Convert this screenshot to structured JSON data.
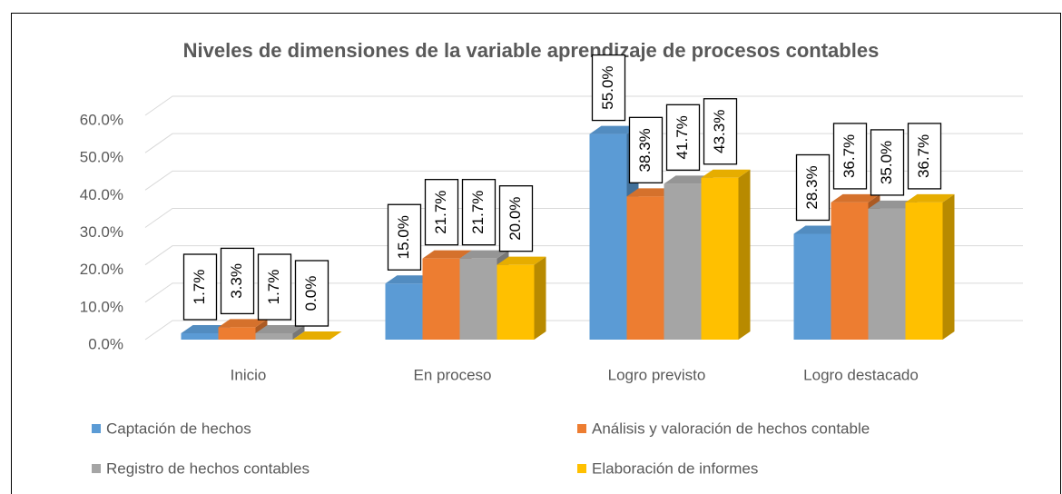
{
  "chart_data": {
    "type": "bar3d",
    "title": "Niveles de dimensiones de la variable aprendizaje de procesos contables",
    "categories": [
      "Inicio",
      "En proceso",
      "Logro previsto",
      "Logro destacado"
    ],
    "series": [
      {
        "name": "Captación de hechos",
        "color": "#5b9bd5",
        "values": [
          1.7,
          15.0,
          55.0,
          28.3
        ],
        "value_labels": [
          "1.7%",
          "15.0%",
          "55.0%",
          "28.3%"
        ]
      },
      {
        "name": "Análisis y valoración de hechos contable",
        "color": "#ed7d31",
        "values": [
          3.3,
          21.7,
          38.3,
          36.7
        ],
        "value_labels": [
          "3.3%",
          "21.7%",
          "38.3%",
          "36.7%"
        ]
      },
      {
        "name": "Registro de hechos contables",
        "color": "#a5a5a5",
        "values": [
          1.7,
          21.7,
          41.7,
          35.0
        ],
        "value_labels": [
          "1.7%",
          "21.7%",
          "41.7%",
          "35.0%"
        ]
      },
      {
        "name": "Elaboración de informes",
        "color": "#ffc000",
        "values": [
          0.0,
          20.0,
          43.3,
          36.7
        ],
        "value_labels": [
          "0.0%",
          "20.0%",
          "43.3%",
          "36.7%"
        ]
      }
    ],
    "ylim": [
      0,
      60
    ],
    "yticks": [
      {
        "value": 0,
        "label": "0.0%"
      },
      {
        "value": 10,
        "label": "10.0%"
      },
      {
        "value": 20,
        "label": "20.0%"
      },
      {
        "value": 30,
        "label": "30.0%"
      },
      {
        "value": 40,
        "label": "40.0%"
      },
      {
        "value": 50,
        "label": "50.0%"
      },
      {
        "value": 60,
        "label": "60.0%"
      }
    ],
    "grid": true,
    "legend": "bottom"
  }
}
